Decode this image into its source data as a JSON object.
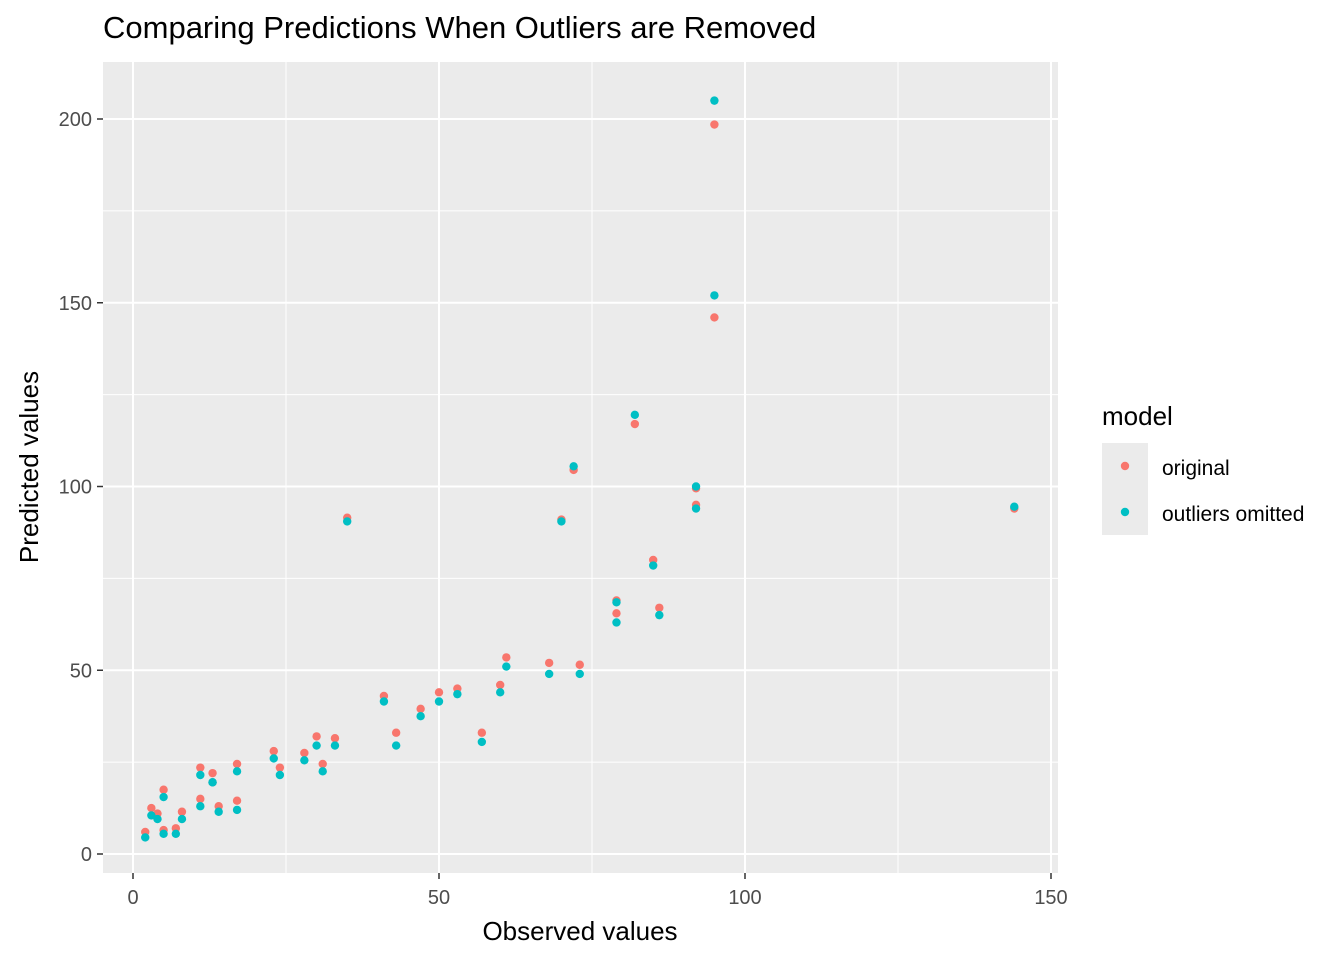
{
  "chart_data": {
    "type": "scatter",
    "title": "Comparing Predictions When Outliers are Removed",
    "xlabel": "Observed values",
    "ylabel": "Predicted values",
    "xlim": [
      -5,
      150
    ],
    "ylim": [
      -5,
      215
    ],
    "x_ticks": [
      0,
      50,
      100,
      150
    ],
    "x_tick_labels": [
      "0",
      "50",
      "100",
      "150"
    ],
    "y_ticks": [
      0,
      50,
      100,
      150,
      200
    ],
    "y_tick_labels": [
      "0",
      "50",
      "100",
      "150",
      "200"
    ],
    "grid": true,
    "legend": {
      "title": "model",
      "position": "right"
    },
    "series": [
      {
        "name": "original",
        "color": "#F8766D",
        "points": [
          [
            2,
            6
          ],
          [
            3,
            12.5
          ],
          [
            4,
            11
          ],
          [
            5,
            17.5
          ],
          [
            5,
            6.5
          ],
          [
            7,
            7
          ],
          [
            8,
            11.5
          ],
          [
            11,
            23.5
          ],
          [
            11,
            15
          ],
          [
            13,
            22
          ],
          [
            13,
            19.5
          ],
          [
            14,
            13
          ],
          [
            17,
            24.5
          ],
          [
            17,
            14.5
          ],
          [
            23,
            28
          ],
          [
            24,
            23.5
          ],
          [
            28,
            27.5
          ],
          [
            30,
            32
          ],
          [
            31,
            24.5
          ],
          [
            33,
            31.5
          ],
          [
            35,
            91.5
          ],
          [
            41,
            43
          ],
          [
            43,
            33
          ],
          [
            47,
            39.5
          ],
          [
            50,
            44
          ],
          [
            53,
            45
          ],
          [
            57,
            33
          ],
          [
            60,
            46
          ],
          [
            61,
            53.5
          ],
          [
            68,
            52
          ],
          [
            70,
            91
          ],
          [
            72,
            104.5
          ],
          [
            73,
            51.5
          ],
          [
            79,
            69
          ],
          [
            79,
            65.5
          ],
          [
            82,
            117
          ],
          [
            85,
            80
          ],
          [
            86,
            67
          ],
          [
            92,
            99.5
          ],
          [
            92,
            95
          ],
          [
            95,
            146
          ],
          [
            95,
            198.5
          ],
          [
            144,
            94
          ]
        ]
      },
      {
        "name": "outliers omitted",
        "color": "#00BFC4",
        "points": [
          [
            2,
            4.5
          ],
          [
            3,
            10.5
          ],
          [
            4,
            9.5
          ],
          [
            5,
            15.5
          ],
          [
            5,
            5.5
          ],
          [
            7,
            5.5
          ],
          [
            8,
            9.5
          ],
          [
            11,
            21.5
          ],
          [
            11,
            13
          ],
          [
            13,
            19.5
          ],
          [
            13,
            19.5
          ],
          [
            14,
            11.5
          ],
          [
            17,
            22.5
          ],
          [
            17,
            12
          ],
          [
            23,
            26
          ],
          [
            24,
            21.5
          ],
          [
            28,
            25.5
          ],
          [
            30,
            29.5
          ],
          [
            31,
            22.5
          ],
          [
            33,
            29.5
          ],
          [
            35,
            90.5
          ],
          [
            41,
            41.5
          ],
          [
            43,
            29.5
          ],
          [
            47,
            37.5
          ],
          [
            50,
            41.5
          ],
          [
            53,
            43.5
          ],
          [
            57,
            30.5
          ],
          [
            60,
            44
          ],
          [
            61,
            51
          ],
          [
            68,
            49
          ],
          [
            70,
            90.5
          ],
          [
            72,
            105.5
          ],
          [
            73,
            49
          ],
          [
            79,
            68.5
          ],
          [
            79,
            63
          ],
          [
            82,
            119.5
          ],
          [
            85,
            78.5
          ],
          [
            86,
            65
          ],
          [
            92,
            100
          ],
          [
            92,
            94
          ],
          [
            95,
            152
          ],
          [
            95,
            205
          ],
          [
            144,
            94.5
          ]
        ]
      }
    ]
  }
}
